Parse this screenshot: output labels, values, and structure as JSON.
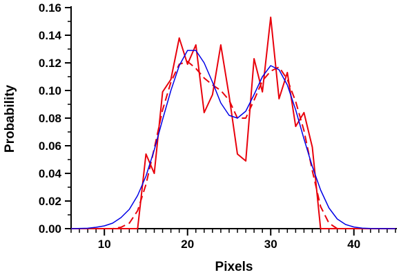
{
  "chart_data": {
    "type": "line",
    "title": "",
    "xlabel": "Pixels",
    "ylabel": "Probability",
    "xlim": [
      6,
      45
    ],
    "ylim": [
      0,
      0.16
    ],
    "x_ticks": [
      10,
      20,
      30,
      40
    ],
    "y_ticks": [
      0.0,
      0.02,
      0.04,
      0.06,
      0.08,
      0.1,
      0.12,
      0.14,
      0.16
    ],
    "y_tick_labels": [
      "0.00",
      "0.02",
      "0.04",
      "0.06",
      "0.08",
      "0.10",
      "0.12",
      "0.14",
      "0.16"
    ],
    "grid": false,
    "legend": "none",
    "series": [
      {
        "color": "#e8000b",
        "style": "solid",
        "x": [
          6,
          14,
          15,
          16,
          17,
          18,
          19,
          20,
          21,
          22,
          23,
          24,
          25,
          26,
          27,
          28,
          29,
          30,
          31,
          32,
          33,
          34,
          35,
          36,
          45
        ],
        "y": [
          0,
          0,
          0.054,
          0.04,
          0.099,
          0.108,
          0.138,
          0.119,
          0.133,
          0.084,
          0.097,
          0.133,
          0.096,
          0.054,
          0.049,
          0.123,
          0.099,
          0.153,
          0.094,
          0.113,
          0.074,
          0.084,
          0.059,
          0,
          0
        ]
      },
      {
        "color": "#e8000b",
        "style": "dashed",
        "x": [
          6,
          11,
          12,
          13,
          14,
          15,
          16,
          17,
          18,
          19,
          20,
          21,
          22,
          23,
          24,
          25,
          26,
          27,
          28,
          29,
          30,
          31,
          32,
          33,
          34,
          35,
          36,
          37,
          38,
          45
        ],
        "y": [
          0,
          0,
          0.001,
          0.004,
          0.013,
          0.032,
          0.058,
          0.086,
          0.106,
          0.119,
          0.121,
          0.116,
          0.109,
          0.104,
          0.1,
          0.093,
          0.08,
          0.08,
          0.093,
          0.107,
          0.114,
          0.117,
          0.108,
          0.092,
          0.071,
          0.042,
          0.016,
          0.004,
          0,
          0
        ]
      },
      {
        "color": "#0000e6",
        "style": "solid",
        "x": [
          6,
          8,
          9,
          10,
          11,
          12,
          13,
          14,
          15,
          16,
          17,
          18,
          19,
          20,
          21,
          22,
          23,
          24,
          25,
          26,
          27,
          28,
          29,
          30,
          31,
          32,
          33,
          34,
          35,
          36,
          37,
          38,
          39,
          40,
          41,
          42,
          45
        ],
        "y": [
          0,
          0.0003,
          0.001,
          0.002,
          0.004,
          0.008,
          0.014,
          0.024,
          0.038,
          0.057,
          0.079,
          0.1,
          0.118,
          0.129,
          0.129,
          0.12,
          0.106,
          0.091,
          0.082,
          0.08,
          0.085,
          0.097,
          0.11,
          0.118,
          0.115,
          0.104,
          0.086,
          0.065,
          0.045,
          0.028,
          0.015,
          0.007,
          0.003,
          0.0012,
          0.0004,
          0.0001,
          0
        ]
      }
    ]
  }
}
